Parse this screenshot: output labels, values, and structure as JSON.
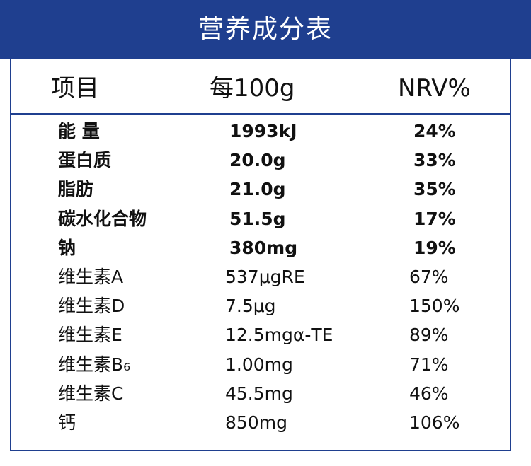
{
  "header": {
    "title": "营养成分表"
  },
  "columns": {
    "item": "项目",
    "per100g": "每100g",
    "nrv": "NRV%"
  },
  "rows": [
    {
      "name": "能 量",
      "amount": "1993kJ",
      "nrv": "24%",
      "style": "bold"
    },
    {
      "name": "蛋白质",
      "amount": "20.0g",
      "nrv": "33%",
      "style": "bold"
    },
    {
      "name": "脂肪",
      "amount": "21.0g",
      "nrv": "35%",
      "style": "bold"
    },
    {
      "name": "碳水化合物",
      "amount": "51.5g",
      "nrv": "17%",
      "style": "bold"
    },
    {
      "name": "钠",
      "amount": "380mg",
      "nrv": "19%",
      "style": "bold"
    },
    {
      "name": "维生素A",
      "amount": "537μgRE",
      "nrv": "67%",
      "style": "normal"
    },
    {
      "name": "维生素D",
      "amount": "7.5μg",
      "nrv": "150%",
      "style": "normal"
    },
    {
      "name": "维生素E",
      "amount": "12.5mgα-TE",
      "nrv": "89%",
      "style": "normal"
    },
    {
      "name": "维生素B₆",
      "amount": "1.00mg",
      "nrv": "71%",
      "style": "normal"
    },
    {
      "name": "维生素C",
      "amount": "45.5mg",
      "nrv": "46%",
      "style": "normal"
    },
    {
      "name": "钙",
      "amount": "850mg",
      "nrv": "106%",
      "style": "normal"
    }
  ],
  "colors": {
    "accent": "#1f3f8f",
    "text": "#111111",
    "header_text": "#ffffff"
  }
}
